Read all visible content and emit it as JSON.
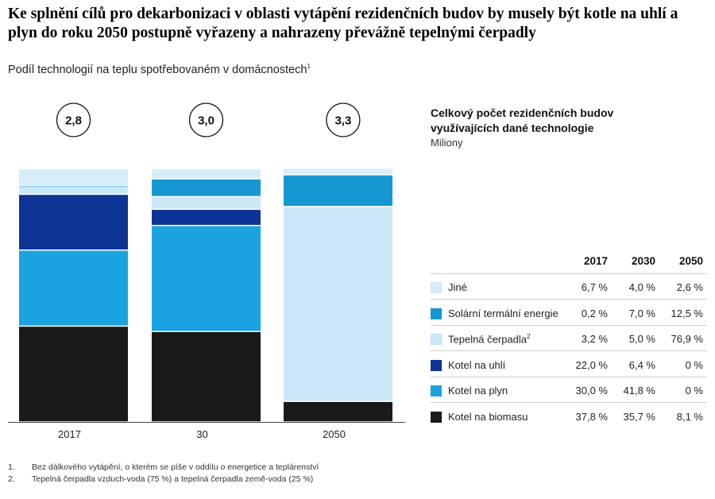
{
  "title": "Ke splnění cílů pro dekarbonizaci v oblasti vytápění rezidenčních budov by musely být kotle na uhlí a plyn do roku 2050 postupně vyřazeny a nahrazeny převážně tepelnými čerpadly",
  "subtitle": "Podíl technologií na teplu spotřebovaném v domácnostech",
  "subtitle_note": "1",
  "legend": {
    "heading": "Celkový počet rezidenčních budov využívajících dané technologie",
    "unit": "Miliony",
    "years": [
      "2017",
      "2030",
      "2050"
    ]
  },
  "chart_data": {
    "type": "bar",
    "stacked": true,
    "categories": [
      "2017",
      "30",
      "2050"
    ],
    "totals_millions": [
      "2,8",
      "3,0",
      "3,3"
    ],
    "ylim": [
      0,
      100
    ],
    "series": [
      {
        "name": "Kotel na biomasu",
        "color": "#1a1a1a",
        "values": [
          37.8,
          35.7,
          8.1
        ],
        "labels": [
          "37,8 %",
          "35,7 %",
          "8,1 %"
        ]
      },
      {
        "name": "Kotel na plyn",
        "color": "#1aa3e0",
        "values": [
          30.0,
          41.8,
          0
        ],
        "labels": [
          "30,0 %",
          "41,8 %",
          "0 %"
        ]
      },
      {
        "name": "Kotel na uhlí",
        "color": "#0d3494",
        "values": [
          22.0,
          6.4,
          0
        ],
        "labels": [
          "22,0 %",
          "6,4 %",
          "0 %"
        ]
      },
      {
        "name": "Tepelná čerpadla",
        "note": "2",
        "color": "#cbe8f7",
        "values": [
          3.2,
          5.0,
          76.9
        ],
        "labels": [
          "3,2 %",
          "5,0 %",
          "76,9 %"
        ]
      },
      {
        "name": "Solární termální energie",
        "color": "#1697d2",
        "values": [
          0.2,
          7.0,
          12.5
        ],
        "labels": [
          "0,2 %",
          "7,0 %",
          "12,5 %"
        ]
      },
      {
        "name": "Jiné",
        "color": "#d6edf9",
        "values": [
          6.7,
          4.0,
          2.6
        ],
        "labels": [
          "6,7 %",
          "4,0 %",
          "2,6 %"
        ]
      }
    ]
  },
  "footnotes": [
    {
      "n": "1.",
      "text": "Bez dálkového vytápění, o kterém se píše v oddílu o energetice a teplárenství"
    },
    {
      "n": "2.",
      "text": "Tepelná čerpadla vzduch-voda (75 %) a tepelná čerpadla země-voda (25 %)"
    }
  ]
}
